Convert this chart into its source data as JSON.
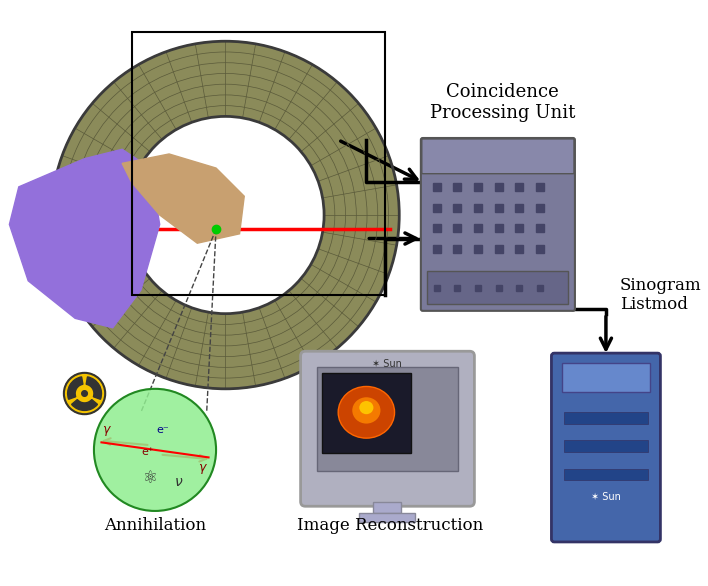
{
  "title": "",
  "bg_color": "#ffffff",
  "label_coincidence": "Coincidence\nProcessing Unit",
  "label_sinogram": "Sinogram\nListmod",
  "label_annihilation": "Annihilation",
  "label_reconstruction": "Image Reconstruction",
  "label_coincidence_fontsize": 13,
  "label_annihilation_fontsize": 12,
  "label_reconstruction_fontsize": 12,
  "label_sinogram_fontsize": 12,
  "radiation_symbol_color": "#f5c400",
  "annihilation_circle_color": "#90ee90",
  "arrow_color": "#000000",
  "ring_color": "#8b8b5a",
  "ring_inner_color": "#3a3a3a",
  "body_color": "#9370DB",
  "server_color": "#7a7a9a",
  "monitor_color": "#b0b0c0",
  "dashed_line_color": "#444444",
  "tower_color": "#4466aa",
  "slot_color": "#224488"
}
